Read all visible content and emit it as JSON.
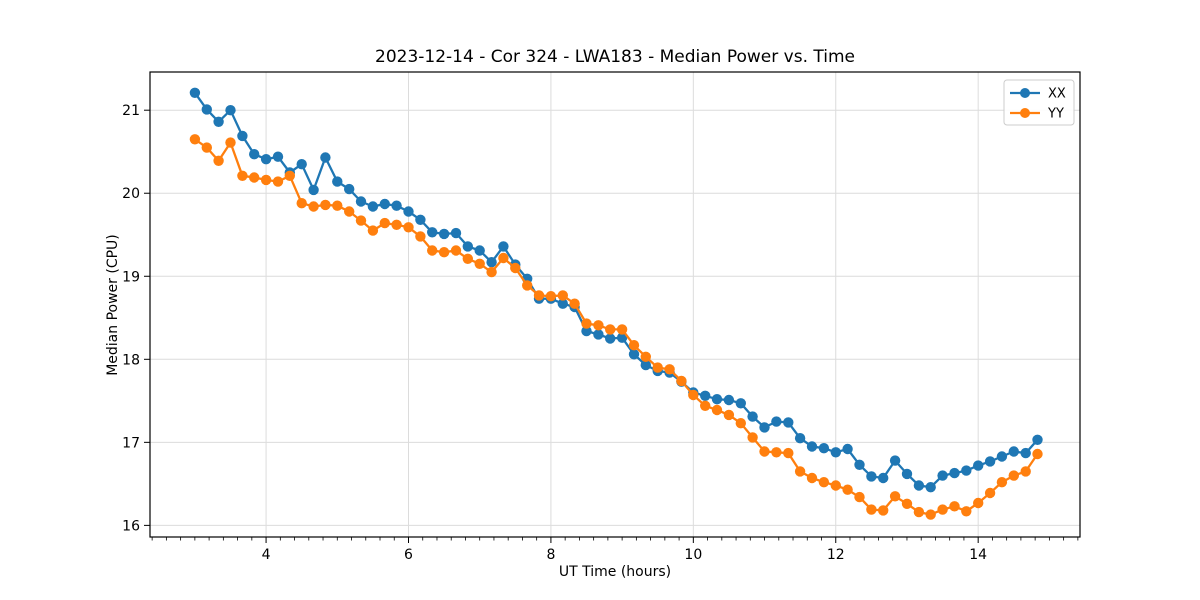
{
  "figure": {
    "background": "#ffffff"
  },
  "chart_data": {
    "type": "line",
    "title": "2023-12-14 - Cor 324 - LWA183 - Median Power vs. Time",
    "xlabel": "UT Time (hours)",
    "ylabel": "Median Power (CPU)",
    "xlim": [
      2.37,
      15.43
    ],
    "ylim": [
      15.86,
      21.46
    ],
    "xticks": [
      4,
      6,
      8,
      10,
      12,
      14
    ],
    "yticks": [
      16,
      17,
      18,
      19,
      20,
      21
    ],
    "minor_xtick_step": 0.2,
    "grid": true,
    "grid_color": "#dcdcdc",
    "legend_position": "upper right",
    "x": [
      3.0,
      3.167,
      3.333,
      3.5,
      3.667,
      3.833,
      4.0,
      4.167,
      4.333,
      4.5,
      4.667,
      4.833,
      5.0,
      5.167,
      5.333,
      5.5,
      5.667,
      5.833,
      6.0,
      6.167,
      6.333,
      6.5,
      6.667,
      6.833,
      7.0,
      7.167,
      7.333,
      7.5,
      7.667,
      7.833,
      8.0,
      8.167,
      8.333,
      8.5,
      8.667,
      8.833,
      9.0,
      9.167,
      9.333,
      9.5,
      9.667,
      9.833,
      10.0,
      10.167,
      10.333,
      10.5,
      10.667,
      10.833,
      11.0,
      11.167,
      11.333,
      11.5,
      11.667,
      11.833,
      12.0,
      12.167,
      12.333,
      12.5,
      12.667,
      12.833,
      13.0,
      13.167,
      13.333,
      13.5,
      13.667,
      13.833,
      14.0,
      14.167,
      14.333,
      14.5,
      14.667,
      14.833
    ],
    "series": [
      {
        "name": "XX",
        "color": "#1f77b4",
        "marker": "circle",
        "values": [
          21.21,
          21.01,
          20.86,
          21.0,
          20.69,
          20.47,
          20.41,
          20.44,
          20.25,
          20.35,
          20.04,
          20.43,
          20.14,
          20.05,
          19.9,
          19.84,
          19.87,
          19.85,
          19.78,
          19.68,
          19.53,
          19.51,
          19.52,
          19.36,
          19.31,
          19.17,
          19.36,
          19.14,
          18.97,
          18.73,
          18.73,
          18.67,
          18.63,
          18.34,
          18.3,
          18.25,
          18.26,
          18.06,
          17.93,
          17.86,
          17.84,
          17.73,
          17.6,
          17.56,
          17.52,
          17.51,
          17.47,
          17.31,
          17.18,
          17.25,
          17.24,
          17.05,
          16.95,
          16.93,
          16.88,
          16.92,
          16.73,
          16.59,
          16.57,
          16.78,
          16.62,
          16.48,
          16.46,
          16.6,
          16.63,
          16.66,
          16.72,
          16.77,
          16.83,
          16.89,
          16.87,
          17.03
        ]
      },
      {
        "name": "YY",
        "color": "#ff7f0e",
        "marker": "circle",
        "values": [
          20.65,
          20.55,
          20.39,
          20.61,
          20.21,
          20.19,
          20.16,
          20.14,
          20.21,
          19.88,
          19.84,
          19.86,
          19.85,
          19.78,
          19.67,
          19.55,
          19.64,
          19.62,
          19.59,
          19.48,
          19.31,
          19.29,
          19.31,
          19.21,
          19.15,
          19.05,
          19.22,
          19.1,
          18.89,
          18.77,
          18.76,
          18.77,
          18.67,
          18.43,
          18.41,
          18.36,
          18.36,
          18.17,
          18.03,
          17.9,
          17.88,
          17.74,
          17.57,
          17.44,
          17.39,
          17.33,
          17.23,
          17.06,
          16.89,
          16.88,
          16.87,
          16.65,
          16.57,
          16.52,
          16.48,
          16.43,
          16.34,
          16.19,
          16.18,
          16.35,
          16.26,
          16.16,
          16.13,
          16.19,
          16.23,
          16.17,
          16.27,
          16.39,
          16.52,
          16.6,
          16.65,
          16.86
        ]
      }
    ],
    "legend": {
      "items": [
        {
          "label": "XX",
          "color": "#1f77b4"
        },
        {
          "label": "YY",
          "color": "#ff7f0e"
        }
      ]
    }
  }
}
